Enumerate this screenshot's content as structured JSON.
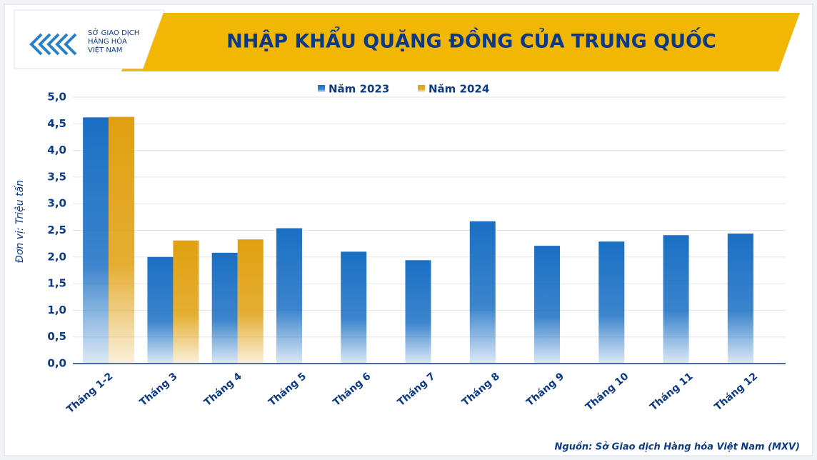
{
  "chart_data": {
    "type": "bar",
    "title": "NHẬP KHẨU QUẶNG ĐỒNG CỦA TRUNG QUỐC",
    "logo_text": [
      "SỞ GIAO DỊCH",
      "HÀNG HÓA",
      "VIỆT NAM"
    ],
    "y_axis_label": "Đơn vị: Triệu tấn",
    "source": "Nguồn: Sở Giao dịch Hàng hóa Việt Nam (MXV)",
    "categories": [
      "Tháng 1-2",
      "Tháng 3",
      "Tháng 4",
      "Tháng 5",
      "Tháng 6",
      "Tháng 7",
      "Tháng 8",
      "Tháng 9",
      "Tháng 10",
      "Tháng 11",
      "Tháng 12"
    ],
    "series": [
      {
        "name": "Năm 2023",
        "color": "#1a6fc4",
        "values": [
          4.62,
          2.0,
          2.08,
          2.54,
          2.1,
          1.94,
          2.67,
          2.21,
          2.29,
          2.41,
          2.44
        ]
      },
      {
        "name": "Năm 2024",
        "color": "#e0a010",
        "values": [
          4.63,
          2.31,
          2.33,
          null,
          null,
          null,
          null,
          null,
          null,
          null,
          null
        ]
      }
    ],
    "ylim": [
      0,
      5
    ],
    "yticks": [
      {
        "value": 0,
        "label": "0,0"
      },
      {
        "value": 0.5,
        "label": "0,5"
      },
      {
        "value": 1,
        "label": "1,0"
      },
      {
        "value": 1.5,
        "label": "1,5"
      },
      {
        "value": 2,
        "label": "2,0"
      },
      {
        "value": 2.5,
        "label": "2,5"
      },
      {
        "value": 3,
        "label": "3,0"
      },
      {
        "value": 3.5,
        "label": "3,5"
      },
      {
        "value": 4,
        "label": "4,0"
      },
      {
        "value": 4.5,
        "label": "4,5"
      },
      {
        "value": 5,
        "label": "5,0"
      }
    ],
    "grid": true,
    "legend": "top"
  }
}
